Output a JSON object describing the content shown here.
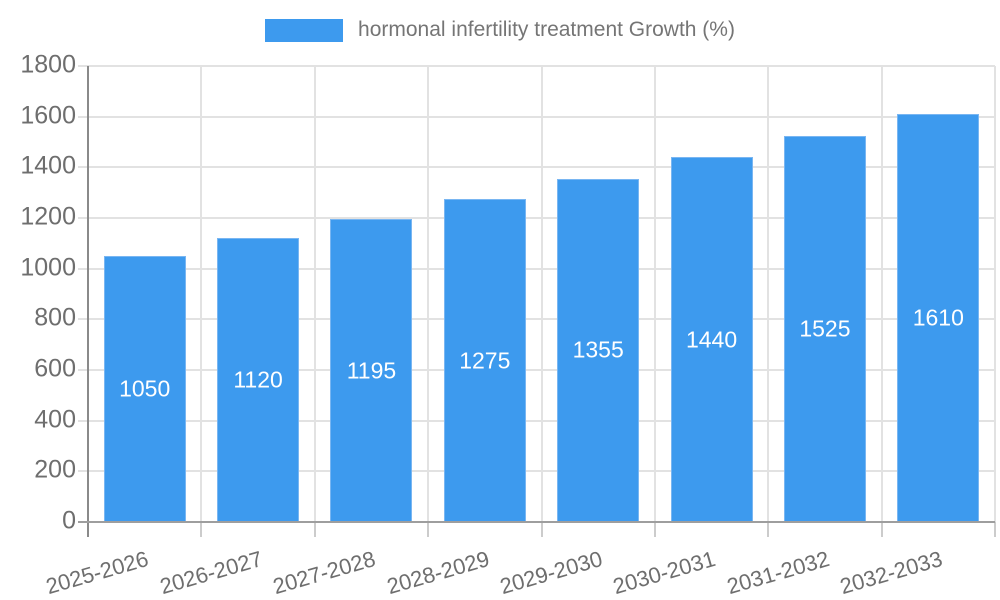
{
  "chart_data": {
    "type": "bar",
    "title": "",
    "legend": "hormonal infertility treatment Growth (%)",
    "legend_position": "top",
    "categories": [
      "2025-2026",
      "2026-2027",
      "2027-2028",
      "2028-2029",
      "2029-2030",
      "2030-2031",
      "2031-2032",
      "2032-2033"
    ],
    "values": [
      1050,
      1120,
      1195,
      1275,
      1355,
      1440,
      1525,
      1610
    ],
    "xlabel": "",
    "ylabel": "",
    "ylim": [
      0,
      1800
    ],
    "yticks": [
      0,
      200,
      400,
      600,
      800,
      1000,
      1200,
      1400,
      1600,
      1800
    ],
    "grid": true,
    "value_labels_inside_bars": true,
    "colors": {
      "bar": "#3d9aee",
      "bar_border": "#79b6f2",
      "value_label": "#ffffff",
      "axis_y": "#8a8a8a",
      "axis_x": "#9e9e9e",
      "grid": "#e2e2e2",
      "tick_stub": "#cccccc",
      "tick_label": "#6e6e6e",
      "legend_text": "#757575",
      "background": "#ffffff"
    }
  }
}
